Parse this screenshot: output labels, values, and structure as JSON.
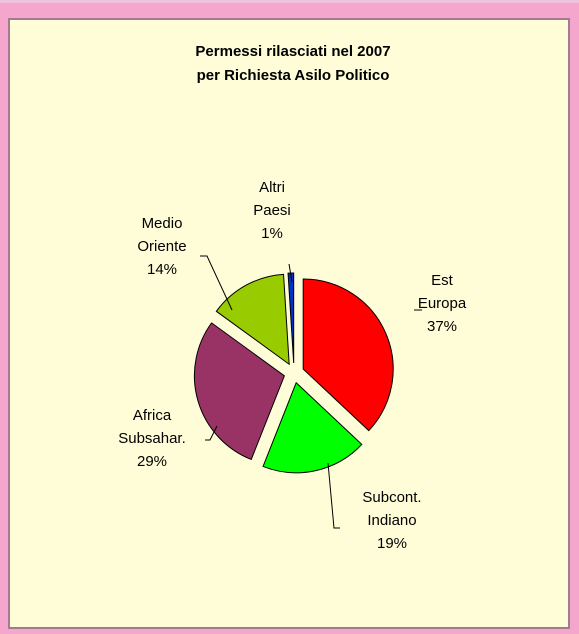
{
  "chart_data": {
    "type": "pie",
    "title_lines": [
      "Permessi rilasciati nel 2007",
      "per Richiesta Asilo Politico"
    ],
    "exploded": true,
    "slices": [
      {
        "key": "est-europa",
        "label_lines": [
          "Est",
          "Europa"
        ],
        "percent_label": "37%",
        "value": 37,
        "color": "#ff0000"
      },
      {
        "key": "subcont-indiano",
        "label_lines": [
          "Subcont.",
          "Indiano"
        ],
        "percent_label": "19%",
        "value": 19,
        "color": "#00ff00"
      },
      {
        "key": "africa-subsahar",
        "label_lines": [
          "Africa",
          "Subsahar."
        ],
        "percent_label": "29%",
        "value": 29,
        "color": "#993366"
      },
      {
        "key": "medio-oriente",
        "label_lines": [
          "Medio",
          "Oriente"
        ],
        "percent_label": "14%",
        "value": 14,
        "color": "#99cc00"
      },
      {
        "key": "altri-paesi",
        "label_lines": [
          "Altri",
          "Paesi"
        ],
        "percent_label": "1%",
        "value": 1,
        "color": "#0033cc"
      }
    ]
  }
}
